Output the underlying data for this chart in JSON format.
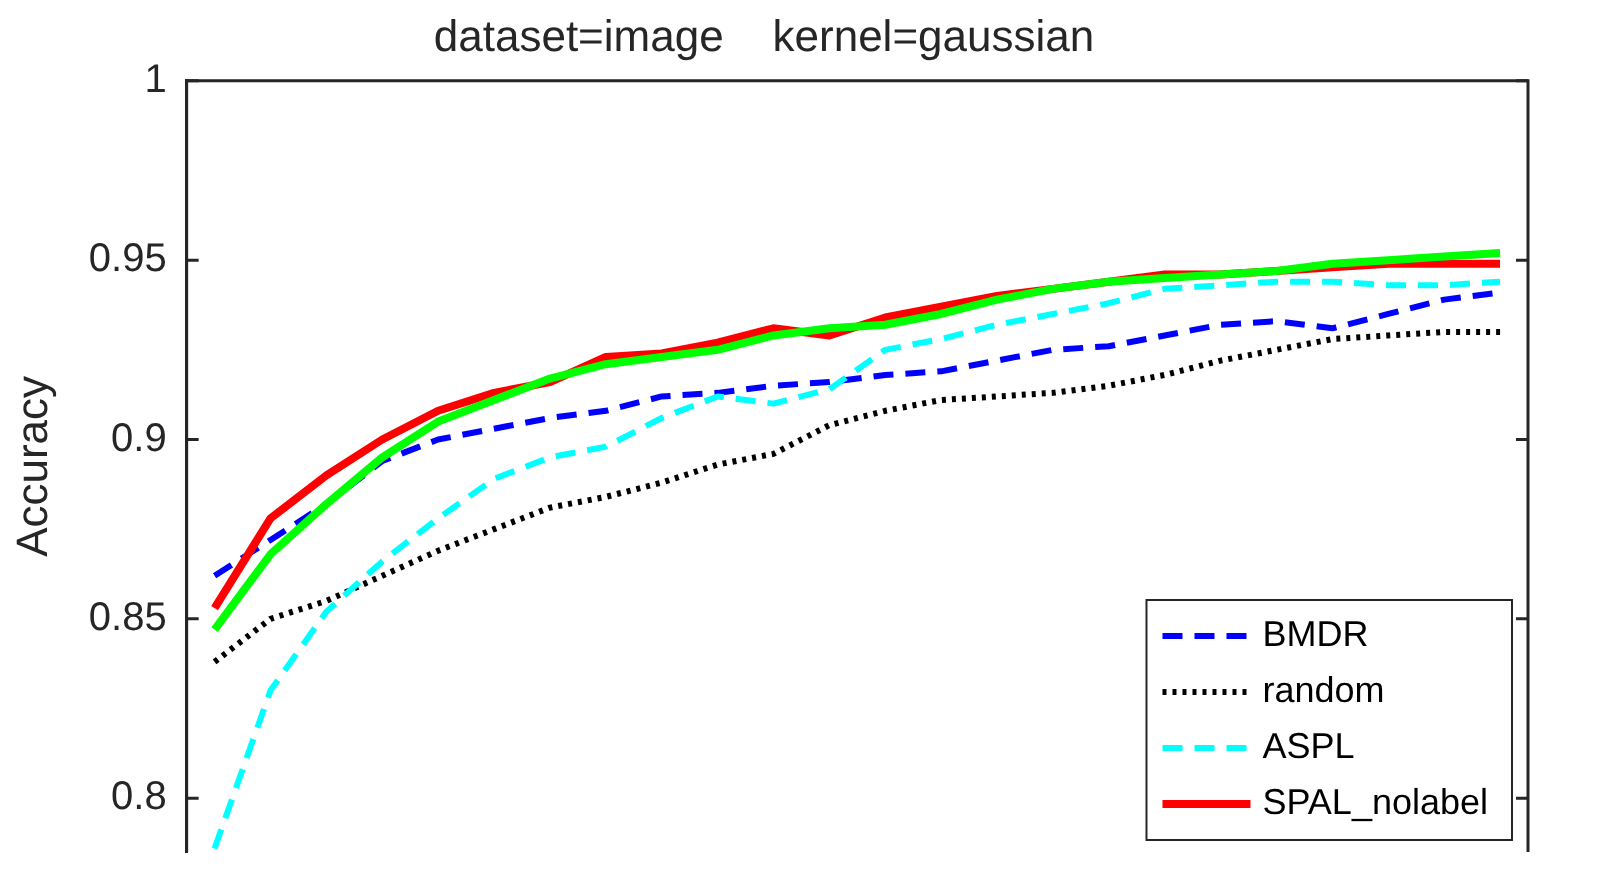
{
  "chart_data": {
    "type": "line",
    "title": "dataset=image    kernel=gaussian",
    "ylabel": "Accuracy",
    "categories": [
      null,
      null,
      null,
      null,
      null,
      null,
      null,
      null,
      null,
      null,
      null,
      null,
      null,
      null,
      null,
      null,
      null,
      null,
      null,
      null,
      null,
      null,
      null,
      null
    ],
    "series": [
      {
        "name": "BMDR",
        "color": "#0000ff",
        "line_style": "dashed",
        "values": [
          0.862,
          0.872,
          0.882,
          0.894,
          0.9,
          0.903,
          0.906,
          0.908,
          0.912,
          0.913,
          0.915,
          0.916,
          0.918,
          0.919,
          0.922,
          0.925,
          0.926,
          0.929,
          0.932,
          0.933,
          0.931,
          0.935,
          0.939,
          0.941
        ]
      },
      {
        "name": "random",
        "color": "#000000",
        "line_style": "dotted",
        "values": [
          0.838,
          0.85,
          0.855,
          0.862,
          0.869,
          0.875,
          0.881,
          0.884,
          0.888,
          0.893,
          0.896,
          0.904,
          0.908,
          0.911,
          0.912,
          0.913,
          0.915,
          0.918,
          0.922,
          0.925,
          0.928,
          0.929,
          0.93,
          0.93
        ]
      },
      {
        "name": "ASPL",
        "color": "#00ffff",
        "line_style": "dashed",
        "values": [
          0.786,
          0.83,
          0.852,
          0.866,
          0.878,
          0.889,
          0.895,
          0.898,
          0.906,
          0.912,
          0.91,
          0.914,
          0.925,
          0.928,
          0.932,
          0.935,
          0.938,
          0.942,
          0.943,
          0.944,
          0.944,
          0.943,
          0.943,
          0.944
        ]
      },
      {
        "name": "SPAL_nolabel",
        "color": "#ff0000",
        "line_style": "solid",
        "values": [
          0.853,
          0.878,
          0.89,
          0.9,
          0.908,
          0.913,
          0.916,
          0.923,
          0.924,
          0.927,
          0.931,
          0.929,
          0.934,
          0.937,
          0.94,
          0.942,
          0.944,
          0.946,
          0.946,
          0.947,
          0.948,
          0.949,
          0.949,
          0.949
        ]
      },
      {
        "color": "#00ff00",
        "line_style": "solid",
        "values": [
          0.847,
          0.868,
          0.882,
          0.895,
          0.905,
          0.911,
          0.917,
          0.921,
          0.923,
          0.925,
          0.929,
          0.931,
          0.932,
          0.935,
          0.939,
          0.942,
          0.944,
          0.945,
          0.946,
          0.947,
          0.949,
          0.95,
          0.951,
          0.952
        ]
      }
    ],
    "ylim": [
      0.785,
      1
    ],
    "yticks": [
      0.8,
      0.85,
      0.9,
      0.95,
      1
    ],
    "tick_labels": "y",
    "grid": false,
    "legend": "bottom right",
    "marker": "none"
  }
}
